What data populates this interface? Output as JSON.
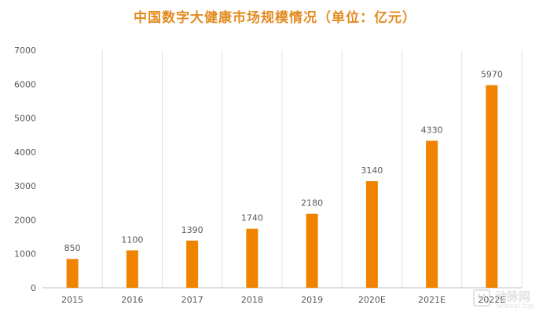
{
  "colors": {
    "title": "#e38a1e",
    "bar": "#f08300",
    "gridline": "#e3e3e3",
    "axis": "#bfbfbf",
    "tick_text": "#595959",
    "data_label": "#595959"
  },
  "watermark": {
    "logo_icon": "vcbeat-logo-icon",
    "logo_glyph": "V",
    "name": "动脉网",
    "url": "vcbeat.top"
  },
  "chart_data": {
    "type": "bar",
    "title": "中国数字大健康市场规模情况（单位：亿元）",
    "xlabel": "",
    "ylabel": "",
    "categories": [
      "2015",
      "2016",
      "2017",
      "2018",
      "2019",
      "2020E",
      "2021E",
      "2022E"
    ],
    "values": [
      850,
      1100,
      1390,
      1740,
      2180,
      3140,
      4330,
      5970
    ],
    "data_labels": [
      "850",
      "1100",
      "1390",
      "1740",
      "2180",
      "3140",
      "4330",
      "5970"
    ],
    "ylim": [
      0,
      7000
    ],
    "yticks": [
      0,
      1000,
      2000,
      3000,
      4000,
      5000,
      6000,
      7000
    ],
    "ytick_labels": [
      "0",
      "1000",
      "2000",
      "3000",
      "4000",
      "5000",
      "6000",
      "7000"
    ],
    "grid": "vertical category separators",
    "legend": "none"
  }
}
